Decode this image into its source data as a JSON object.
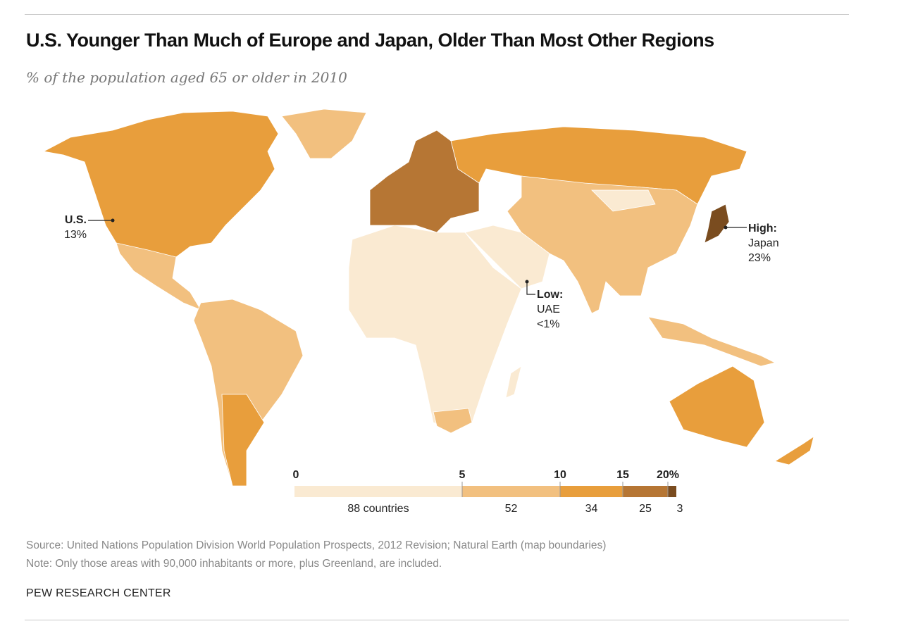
{
  "title": "U.S. Younger Than Much of Europe and Japan, Older Than Most Other Regions",
  "subtitle": "% of the population aged 65 or older in 2010",
  "annotations": {
    "us": {
      "name": "U.S.",
      "value": "13%"
    },
    "high": {
      "label": "High:",
      "name": "Japan",
      "value": "23%"
    },
    "low": {
      "label": "Low:",
      "name": "UAE",
      "value": "<1%"
    }
  },
  "chart_data": {
    "type": "choropleth",
    "legend": {
      "ticks": [
        "0",
        "5",
        "10",
        "15",
        "20%"
      ],
      "bins": [
        {
          "range": [
            0,
            5
          ],
          "count_label": "88 countries",
          "color": "#FAEAD2"
        },
        {
          "range": [
            5,
            10
          ],
          "count_label": "52",
          "color": "#F2C07F"
        },
        {
          "range": [
            10,
            15
          ],
          "count_label": "34",
          "color": "#E89E3C"
        },
        {
          "range": [
            15,
            20
          ],
          "count_label": "25",
          "color": "#B67634"
        },
        {
          "range": [
            20,
            null
          ],
          "count_label": "3",
          "color": "#7A4C1F"
        }
      ]
    }
  },
  "footer": {
    "source": "Source: United Nations Population Division World Population Prospects, 2012 Revision; Natural Earth (map boundaries)",
    "note": "Note: Only those areas with 90,000 inhabitants or more, plus Greenland, are included.",
    "brand": "PEW RESEARCH CENTER"
  }
}
